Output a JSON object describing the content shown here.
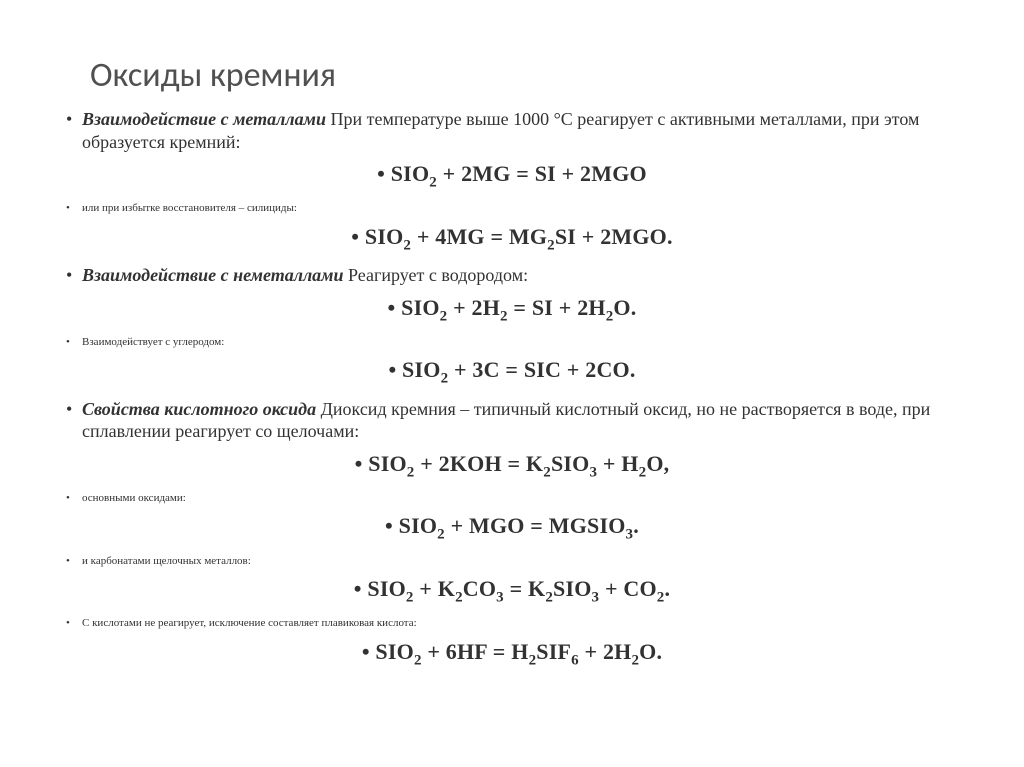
{
  "title": "Оксиды кремния",
  "p1_prefix": "Взаимодействие с металлами",
  "p1_body": " При температуре выше 1000 °С реагирует с активными металлами, при этом образуется кремний:",
  "eq1": "SIO<span class=\"sub\">2</span> + 2MG = SI + 2MGO",
  "p2": "или при избытке восстановителя – силициды:",
  "eq2": "SIO<span class=\"sub\">2</span> + 4MG = MG<span class=\"sub\">2</span>SI + 2MGO.",
  "p3_prefix": "Взаимодействие с неметаллами",
  "p3_body": " Реагирует с водородом:",
  "eq3": "SIO<span class=\"sub\">2</span> + 2H<span class=\"sub\">2</span> = SI + 2H<span class=\"sub\">2</span>O.",
  "p4": "Взаимодействует с углеродом:",
  "eq4": "SIO<span class=\"sub\">2</span> + 3C = SIC + 2CO.",
  "p5_prefix": "Свойства кислотного оксида",
  "p5_body": " Диоксид кремния – типичный кислотный оксид, но не растворяется в воде, при сплавлении реагирует со щелочами:",
  "eq5": "SIO<span class=\"sub\">2</span> + 2KOH = K<span class=\"sub\">2</span>SIO<span class=\"sub\">3</span> + H<span class=\"sub\">2</span>O,",
  "p6": "основными оксидами:",
  "eq6": "SIO<span class=\"sub\">2</span> + MGO = MGSIO<span class=\"sub\">3</span>.",
  "p7": "и карбонатами щелочных металлов:",
  "eq7": "SIO<span class=\"sub\">2</span> + K<span class=\"sub\">2</span>CO<span class=\"sub\">3</span> = K<span class=\"sub\">2</span>SIO<span class=\"sub\">3</span> + CO<span class=\"sub\">2</span>.",
  "p8": "С кислотами не реагирует, исключение составляет плавиковая кислота:",
  "eq8": "SIO<span class=\"sub\">2</span> + 6HF = H<span class=\"sub\">2</span>SIF<span class=\"sub\">6</span> + 2H<span class=\"sub\">2</span>O."
}
